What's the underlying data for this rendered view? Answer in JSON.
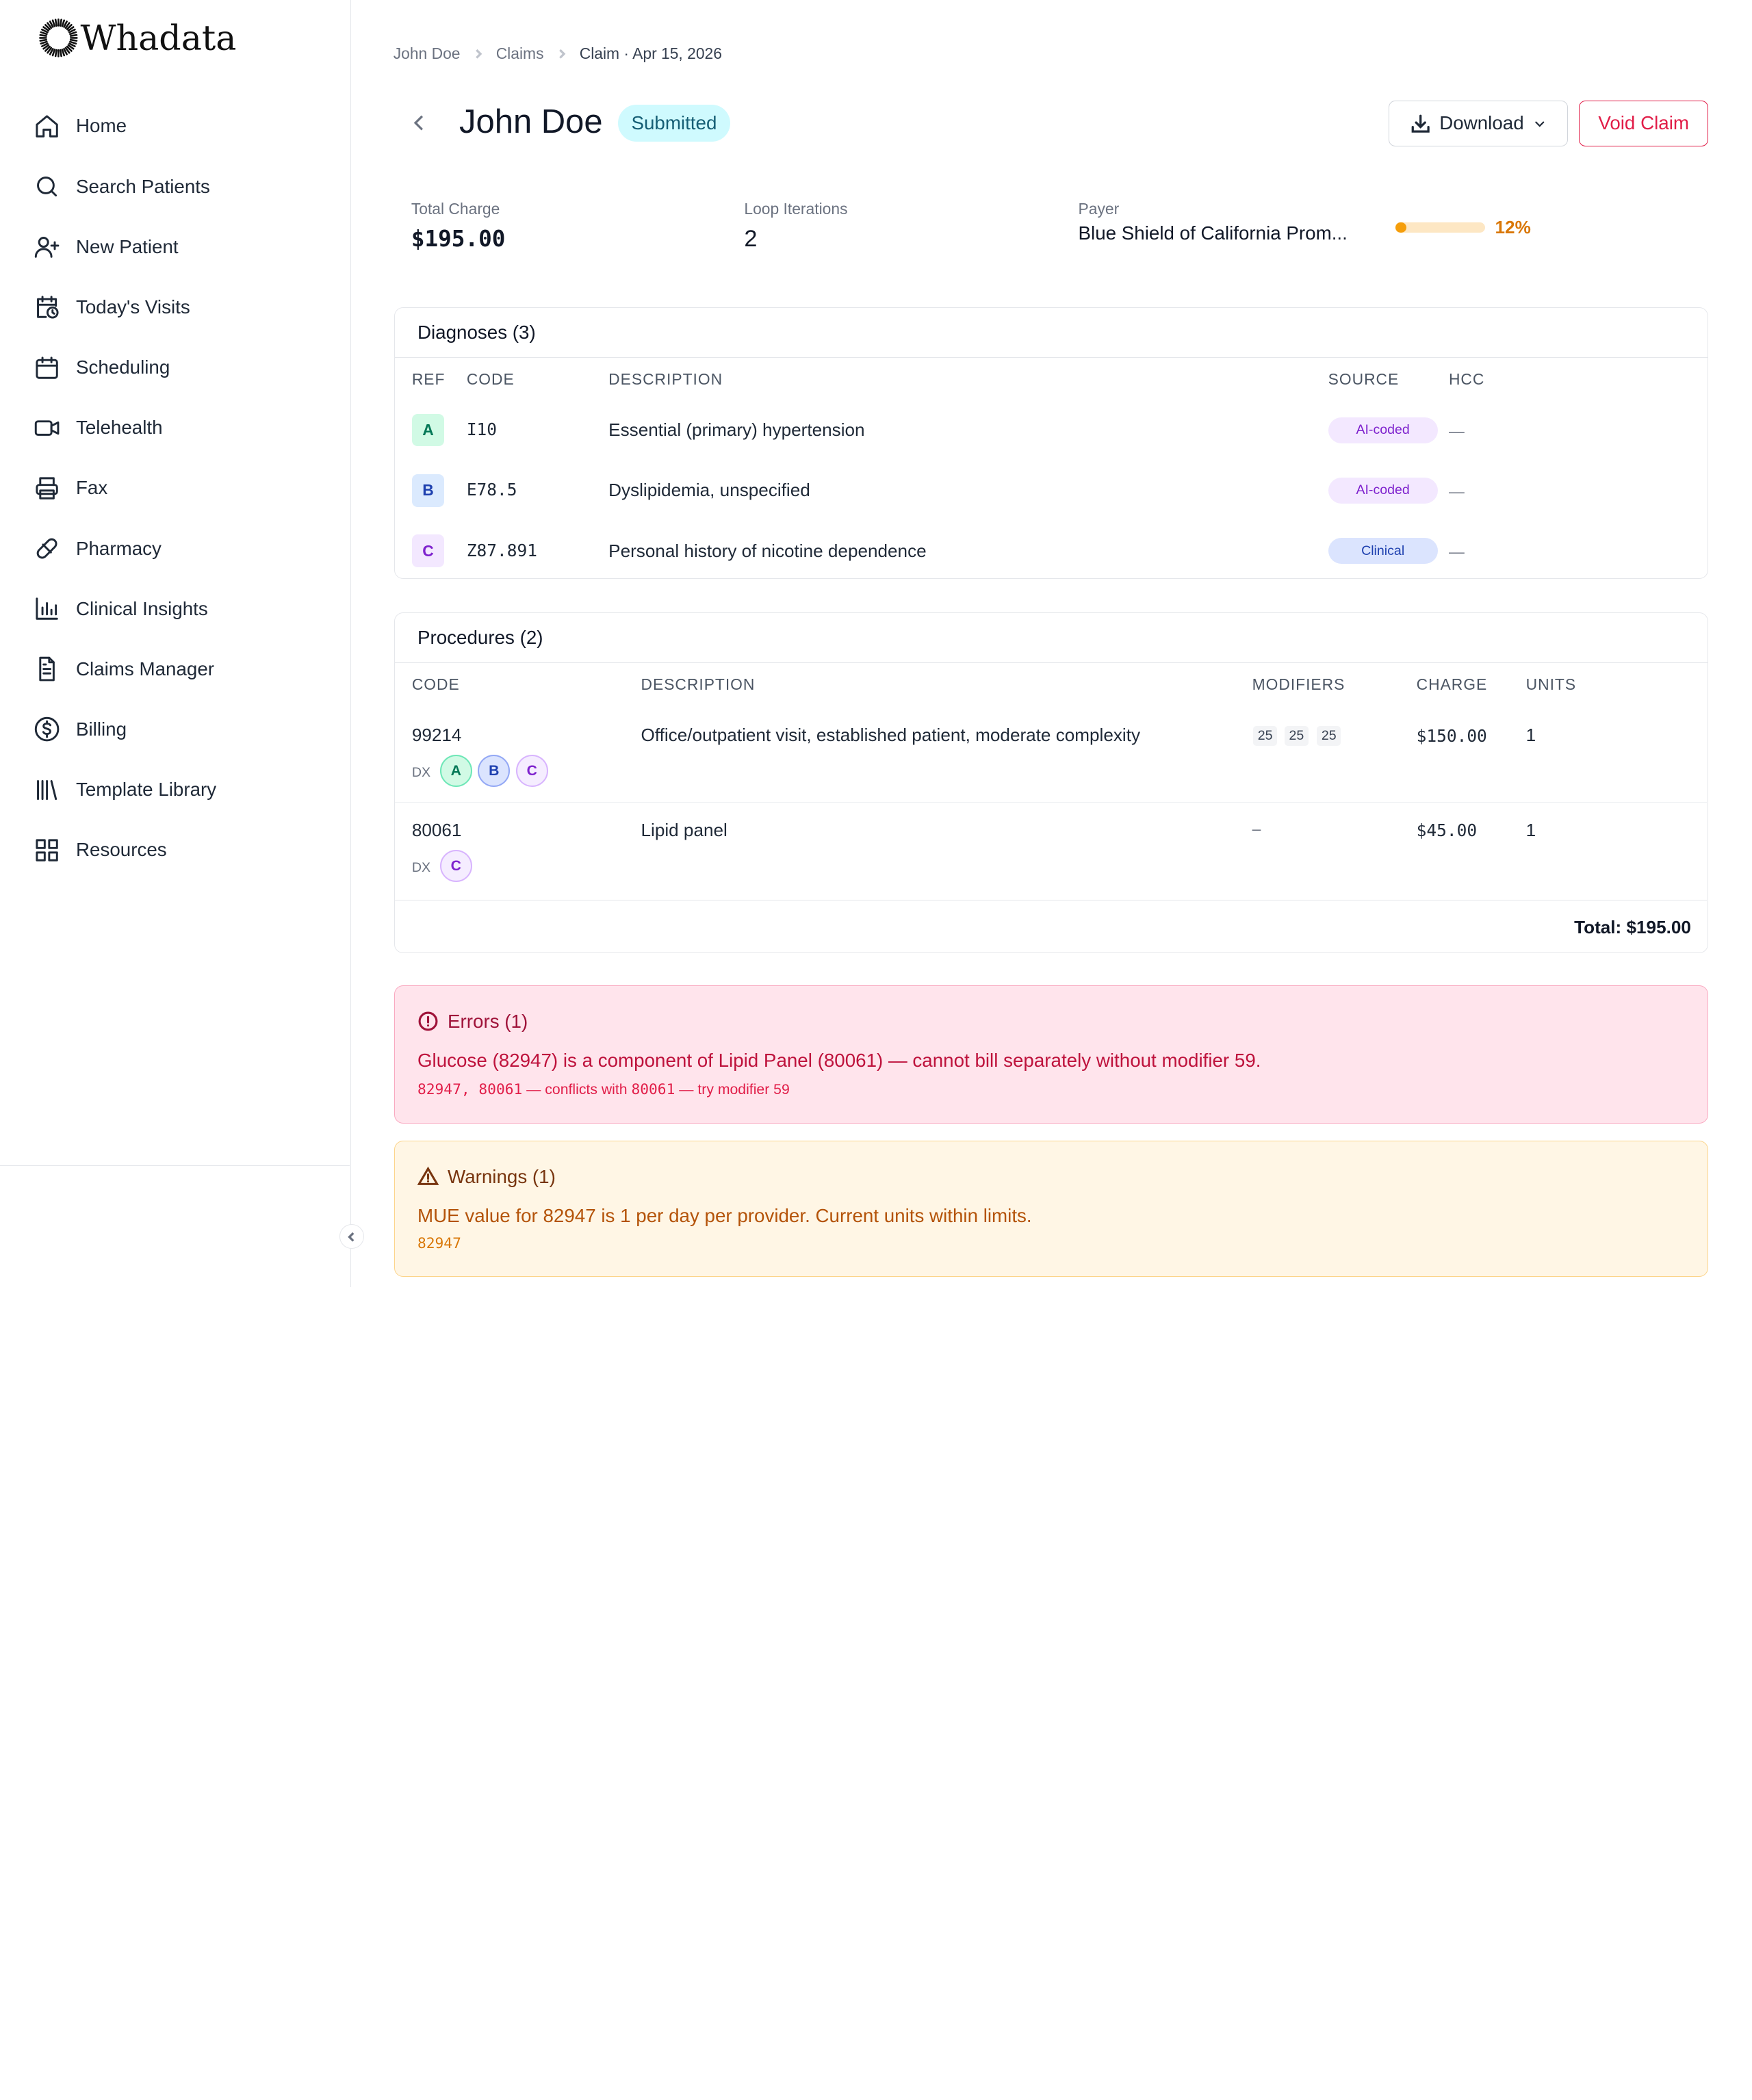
{
  "app": {
    "name": "Whadata"
  },
  "sidebar": {
    "items": [
      {
        "label": "Home",
        "icon": "home-icon"
      },
      {
        "label": "Search Patients",
        "icon": "search-icon"
      },
      {
        "label": "New Patient",
        "icon": "user-plus-icon"
      },
      {
        "label": "Today's Visits",
        "icon": "calendar-clock-icon"
      },
      {
        "label": "Scheduling",
        "icon": "calendar-icon"
      },
      {
        "label": "Telehealth",
        "icon": "video-icon"
      },
      {
        "label": "Fax",
        "icon": "printer-icon"
      },
      {
        "label": "Pharmacy",
        "icon": "pill-icon"
      },
      {
        "label": "Clinical Insights",
        "icon": "bar-chart-icon"
      },
      {
        "label": "Claims Manager",
        "icon": "file-text-icon"
      },
      {
        "label": "Billing",
        "icon": "dollar-circle-icon"
      },
      {
        "label": "Template Library",
        "icon": "library-icon"
      },
      {
        "label": "Resources",
        "icon": "grid-icon"
      }
    ]
  },
  "breadcrumb": [
    "John Doe",
    "Claims",
    "Claim · Apr 15, 2026"
  ],
  "header": {
    "title": "John Doe",
    "status": "Submitted",
    "download_label": "Download",
    "void_label": "Void Claim"
  },
  "stats": {
    "total_charge_label": "Total Charge",
    "total_charge": "$195.00",
    "loop_label": "Loop Iterations",
    "loop_value": "2",
    "payer_label": "Payer",
    "payer_value": "Blue Shield of California Prom...",
    "progress_percent": 12,
    "progress_text": "12%"
  },
  "diagnoses": {
    "title": "Diagnoses (3)",
    "columns": [
      "REF",
      "CODE",
      "DESCRIPTION",
      "SOURCE",
      "HCC"
    ],
    "rows": [
      {
        "ref": "A",
        "code": "I10",
        "description": "Essential (primary) hypertension",
        "source": "AI-coded",
        "hcc": "—"
      },
      {
        "ref": "B",
        "code": "E78.5",
        "description": "Dyslipidemia, unspecified",
        "source": "AI-coded",
        "hcc": "—"
      },
      {
        "ref": "C",
        "code": "Z87.891",
        "description": "Personal history of nicotine dependence",
        "source": "Clinical",
        "hcc": "—"
      }
    ]
  },
  "procedures": {
    "title": "Procedures (2)",
    "columns": [
      "CODE",
      "DESCRIPTION",
      "MODIFIERS",
      "CHARGE",
      "UNITS"
    ],
    "dx_label": "DX",
    "rows": [
      {
        "code": "99214",
        "description": "Office/outpatient visit, established patient, moderate complexity",
        "modifiers": [
          "25",
          "25",
          "25"
        ],
        "charge": "$150.00",
        "units": "1",
        "dx": [
          "A",
          "B",
          "C"
        ]
      },
      {
        "code": "80061",
        "description": "Lipid panel",
        "modifiers_text": "–",
        "charge": "$45.00",
        "units": "1",
        "dx": [
          "C"
        ]
      }
    ],
    "total": "Total: $195.00"
  },
  "errors": {
    "title": "Errors (1)",
    "message": "Glucose (82947) is a component of Lipid Panel (80061) — cannot bill separately without modifier 59.",
    "codes": "82947, 80061",
    "detail_a": " — conflicts with ",
    "conflict_code": "80061",
    "detail_b": " — try modifier 59"
  },
  "warnings": {
    "title": "Warnings (1)",
    "message": "MUE value for 82947 is 1 per day per provider. Current units within limits.",
    "codes": "82947"
  },
  "colors": {
    "accent_red": "#e11d48",
    "submitted_bg": "#cffafe",
    "progress": "#f59e0b",
    "ref_a": "#047857",
    "ref_b": "#1e40af",
    "ref_c": "#7e22ce"
  }
}
